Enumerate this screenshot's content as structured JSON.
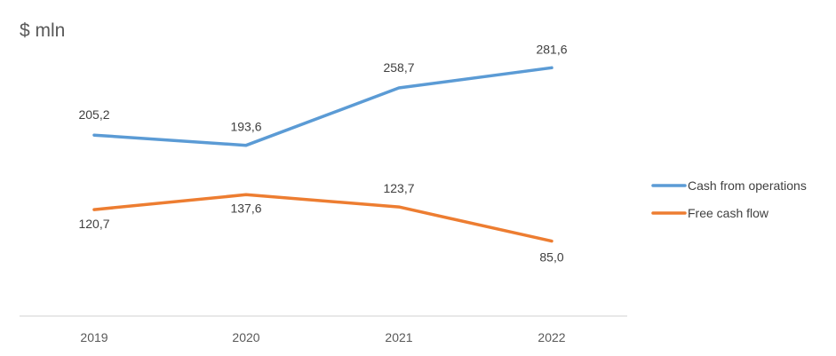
{
  "chart_data": {
    "type": "line",
    "unit_label": "$ mln",
    "categories": [
      "2019",
      "2020",
      "2021",
      "2022"
    ],
    "series": [
      {
        "name": "Cash from operations",
        "color": "#5b9bd5",
        "values": [
          205.2,
          193.6,
          258.7,
          281.6
        ],
        "labels": [
          "205,2",
          "193,6",
          "258,7",
          "281,6"
        ]
      },
      {
        "name": "Free cash flow",
        "color": "#ed7d31",
        "values": [
          120.7,
          137.6,
          123.7,
          85.0
        ],
        "labels": [
          "120,7",
          "137,6",
          "123,7",
          "85,0"
        ]
      }
    ],
    "legend_position": "right",
    "grid": false
  }
}
